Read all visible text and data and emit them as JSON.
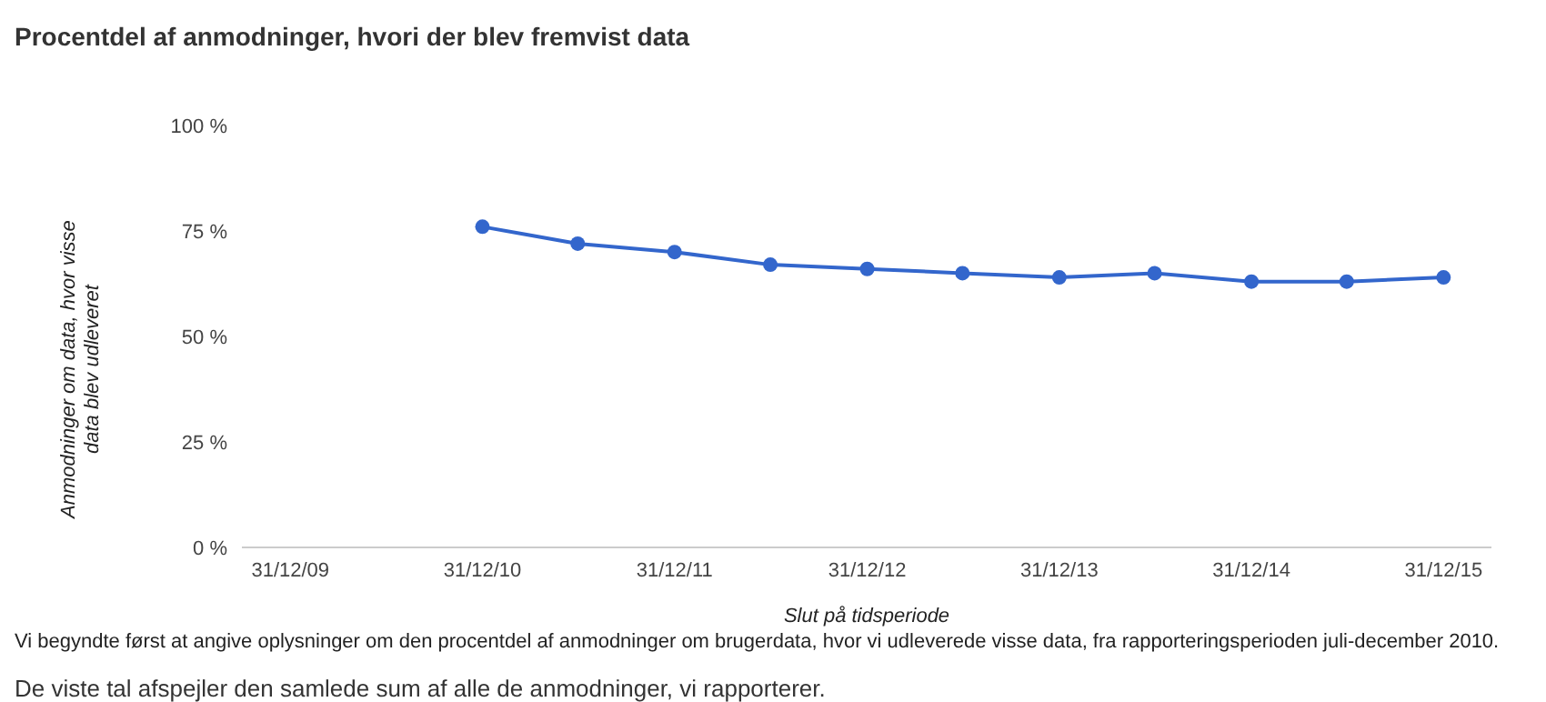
{
  "chart_data": {
    "type": "line",
    "title": "Procentdel af anmodninger, hvori der blev fremvist data",
    "xlabel": "Slut på tidsperiode",
    "ylabel": "Anmodninger om data, hvor visse data blev udleveret",
    "x": [
      "2010-12-31",
      "2011-06-30",
      "2011-12-31",
      "2012-06-30",
      "2012-12-31",
      "2013-06-30",
      "2013-12-31",
      "2014-06-30",
      "2014-12-31",
      "2015-06-30",
      "2015-12-31"
    ],
    "series": [
      {
        "color": "#3366cc",
        "values": [
          76,
          72,
          70,
          67,
          66,
          65,
          64,
          65,
          63,
          63,
          64
        ]
      }
    ],
    "xlim": [
      "2009-09-30",
      "2016-03-31"
    ],
    "xticks": [
      {
        "value": "2009-12-31",
        "label": "31/12/09"
      },
      {
        "value": "2010-12-31",
        "label": "31/12/10"
      },
      {
        "value": "2011-12-31",
        "label": "31/12/11"
      },
      {
        "value": "2012-12-31",
        "label": "31/12/12"
      },
      {
        "value": "2013-12-31",
        "label": "31/12/13"
      },
      {
        "value": "2014-12-31",
        "label": "31/12/14"
      },
      {
        "value": "2015-12-31",
        "label": "31/12/15"
      }
    ],
    "ylim": [
      0,
      100
    ],
    "yticks": [
      {
        "value": 0,
        "label": "0 %"
      },
      {
        "value": 25,
        "label": "25 %"
      },
      {
        "value": 50,
        "label": "50 %"
      },
      {
        "value": 75,
        "label": "75 %"
      },
      {
        "value": 100,
        "label": "100 %"
      }
    ],
    "grid": false,
    "legend": false,
    "marker": "circle",
    "line_style": "solid",
    "annotations": [
      "Vi begyndte først at angive oplysninger om den procentdel af anmodninger om brugerdata, hvor vi udleverede visse data, fra rapporteringsperioden juli-december 2010.",
      "De viste tal afspejler den samlede sum af alle de anmodninger, vi rapporterer."
    ]
  }
}
